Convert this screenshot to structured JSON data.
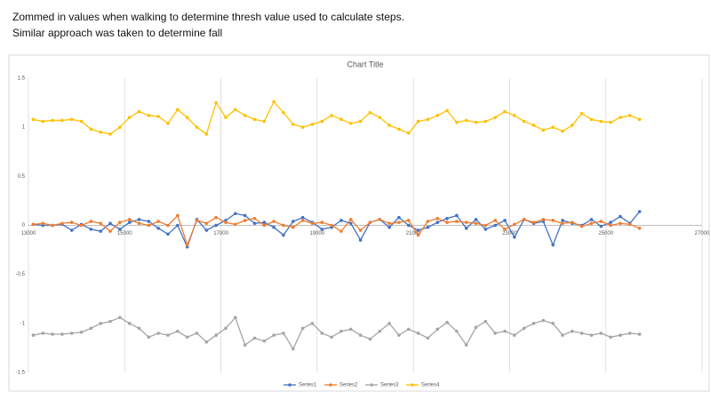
{
  "caption": [
    "Zommed in values when walking to determine thresh value used to calculate steps.",
    "Similar approach was taken to determine fall"
  ],
  "chart_data": {
    "type": "line",
    "title": "Chart Title",
    "x": [
      13100,
      13300,
      13500,
      13700,
      13900,
      14100,
      14300,
      14500,
      14700,
      14900,
      15100,
      15300,
      15500,
      15700,
      15900,
      16100,
      16300,
      16500,
      16700,
      16900,
      17100,
      17300,
      17500,
      17700,
      17900,
      18100,
      18300,
      18500,
      18700,
      18900,
      19100,
      19300,
      19500,
      19700,
      19900,
      20100,
      20300,
      20500,
      20700,
      20900,
      21100,
      21300,
      21500,
      21700,
      21900,
      22100,
      22300,
      22500,
      22700,
      22900,
      23100,
      23300,
      23500,
      23700,
      23900,
      24100,
      24300,
      24500,
      24700,
      24900,
      25100,
      25300,
      25500,
      25700
    ],
    "series": [
      {
        "name": "Series1",
        "color": "#4472c4",
        "values": [
          0.01,
          0.0,
          0.0,
          0.01,
          -0.05,
          0.01,
          -0.04,
          -0.06,
          0.02,
          -0.04,
          0.03,
          0.06,
          0.04,
          -0.03,
          -0.09,
          0.0,
          -0.22,
          0.06,
          -0.05,
          0.0,
          0.05,
          0.12,
          0.1,
          0.02,
          0.03,
          -0.02,
          -0.1,
          0.04,
          0.08,
          0.03,
          -0.04,
          -0.02,
          0.05,
          0.02,
          -0.15,
          0.03,
          0.06,
          -0.02,
          0.08,
          0.0,
          -0.05,
          -0.02,
          0.03,
          0.07,
          0.1,
          -0.03,
          0.06,
          -0.04,
          0.0,
          0.05,
          -0.12,
          0.06,
          0.02,
          0.04,
          -0.2,
          0.05,
          0.02,
          0.0,
          0.06,
          -0.01,
          0.03,
          0.09,
          0.02,
          0.14
        ]
      },
      {
        "name": "Series2",
        "color": "#ed7d31",
        "values": [
          0.01,
          0.02,
          0.0,
          0.02,
          0.03,
          0.0,
          0.04,
          0.02,
          -0.06,
          0.03,
          0.06,
          0.02,
          0.0,
          0.04,
          0.0,
          0.1,
          -0.2,
          0.05,
          0.02,
          0.08,
          0.03,
          0.01,
          0.05,
          0.07,
          0.0,
          0.04,
          0.0,
          -0.02,
          0.05,
          0.02,
          0.03,
          0.0,
          -0.06,
          0.06,
          -0.05,
          0.03,
          0.06,
          0.02,
          0.03,
          0.05,
          -0.1,
          0.04,
          0.07,
          0.03,
          0.04,
          0.03,
          0.02,
          0.0,
          0.05,
          -0.04,
          0.01,
          0.06,
          0.03,
          0.06,
          0.05,
          0.02,
          0.03,
          -0.01,
          0.02,
          0.04,
          0.0,
          0.02,
          0.01,
          -0.03
        ]
      },
      {
        "name": "Series3",
        "color": "#a5a5a5",
        "values": [
          -1.12,
          -1.1,
          -1.11,
          -1.11,
          -1.1,
          -1.09,
          -1.05,
          -1.0,
          -0.98,
          -0.94,
          -1.0,
          -1.05,
          -1.14,
          -1.1,
          -1.12,
          -1.08,
          -1.14,
          -1.1,
          -1.19,
          -1.12,
          -1.05,
          -0.94,
          -1.22,
          -1.15,
          -1.18,
          -1.12,
          -1.1,
          -1.26,
          -1.05,
          -1.0,
          -1.1,
          -1.14,
          -1.08,
          -1.06,
          -1.12,
          -1.16,
          -1.08,
          -1.0,
          -1.12,
          -1.06,
          -1.1,
          -1.15,
          -1.06,
          -0.99,
          -1.08,
          -1.22,
          -1.04,
          -0.98,
          -1.1,
          -1.08,
          -1.12,
          -1.05,
          -1.0,
          -0.97,
          -1.0,
          -1.12,
          -1.08,
          -1.1,
          -1.12,
          -1.1,
          -1.14,
          -1.12,
          -1.1,
          -1.11
        ]
      },
      {
        "name": "Series4",
        "color": "#ffc000",
        "values": [
          1.08,
          1.06,
          1.07,
          1.07,
          1.08,
          1.06,
          0.98,
          0.95,
          0.93,
          1.0,
          1.1,
          1.16,
          1.12,
          1.11,
          1.04,
          1.18,
          1.1,
          1.0,
          0.93,
          1.25,
          1.1,
          1.18,
          1.12,
          1.08,
          1.06,
          1.26,
          1.15,
          1.03,
          1.0,
          1.03,
          1.06,
          1.12,
          1.08,
          1.04,
          1.06,
          1.15,
          1.1,
          1.02,
          0.98,
          0.94,
          1.06,
          1.08,
          1.12,
          1.17,
          1.05,
          1.07,
          1.05,
          1.06,
          1.1,
          1.16,
          1.12,
          1.06,
          1.02,
          0.97,
          1.0,
          0.96,
          1.02,
          1.14,
          1.08,
          1.06,
          1.05,
          1.1,
          1.12,
          1.08
        ]
      }
    ],
    "xlim": [
      13000,
      27000
    ],
    "xticks": [
      13000,
      15000,
      17000,
      19000,
      21000,
      23000,
      25000,
      27000
    ],
    "ylim": [
      -1.5,
      1.5
    ],
    "yticks": [
      -1.5,
      -1,
      -0.5,
      0,
      0.5,
      1,
      1.5
    ],
    "xgrid": true,
    "ygrid": false,
    "legend": "bottom"
  }
}
